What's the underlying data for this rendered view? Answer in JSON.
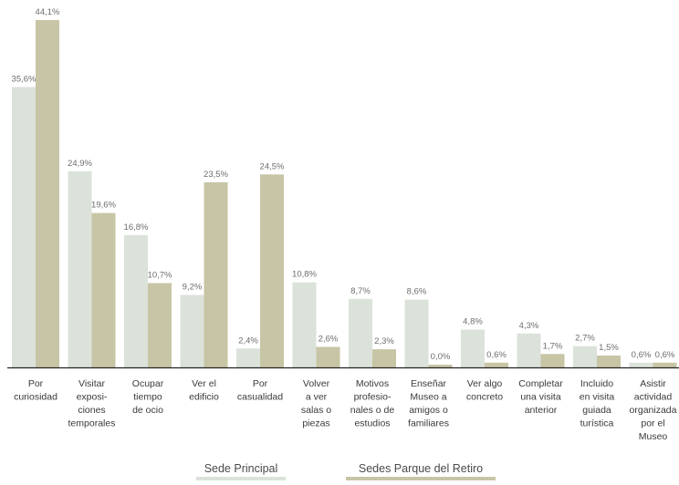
{
  "chart_data": {
    "type": "bar",
    "ylim": [
      0,
      45
    ],
    "grid": false,
    "legend_position": "bottom-center",
    "colors": {
      "Sede Principal": "#dbe2da",
      "Sedes Parque del Retiro": "#c8c5a6",
      "axis": "#222222"
    },
    "categories": [
      [
        "Por",
        "curiosidad"
      ],
      [
        "Visitar",
        "exposi-",
        "ciones",
        "temporales"
      ],
      [
        "Ocupar",
        "tiempo",
        "de ocio"
      ],
      [
        "Ver el",
        "edificio"
      ],
      [
        "Por",
        "casualidad"
      ],
      [
        "Volver",
        "a ver",
        "salas o",
        "piezas"
      ],
      [
        "Motivos",
        "profesio-",
        "nales o de",
        "estudios"
      ],
      [
        "Enseñar",
        "Museo a",
        "amigos o",
        "familiares"
      ],
      [
        "Ver algo",
        "concreto"
      ],
      [
        "Completar",
        "una visita",
        "anterior"
      ],
      [
        "Incluido",
        "en visita",
        "guiada",
        "turística"
      ],
      [
        "Asistir",
        "actividad",
        "organizada",
        "por el",
        "Museo"
      ]
    ],
    "series": [
      {
        "name": "Sede Principal",
        "values": [
          35.6,
          24.9,
          16.8,
          9.2,
          2.4,
          10.8,
          8.7,
          8.6,
          4.8,
          4.3,
          2.7,
          0.6
        ],
        "labels": [
          "35,6%",
          "24,9%",
          "16,8%",
          "9,2%",
          "2,4%",
          "10,8%",
          "8,7%",
          "8,6%",
          "4,8%",
          "4,3%",
          "2,7%",
          "0,6%"
        ]
      },
      {
        "name": "Sedes Parque del Retiro",
        "values": [
          44.1,
          19.6,
          10.7,
          23.5,
          24.5,
          2.6,
          2.3,
          0.0,
          0.6,
          1.7,
          1.5,
          0.6
        ],
        "labels": [
          "44,1%",
          "19,6%",
          "10,7%",
          "23,5%",
          "24,5%",
          "2,6%",
          "2,3%",
          "0,0%",
          "0,6%",
          "1,7%",
          "1,5%",
          "0,6%"
        ]
      }
    ]
  }
}
